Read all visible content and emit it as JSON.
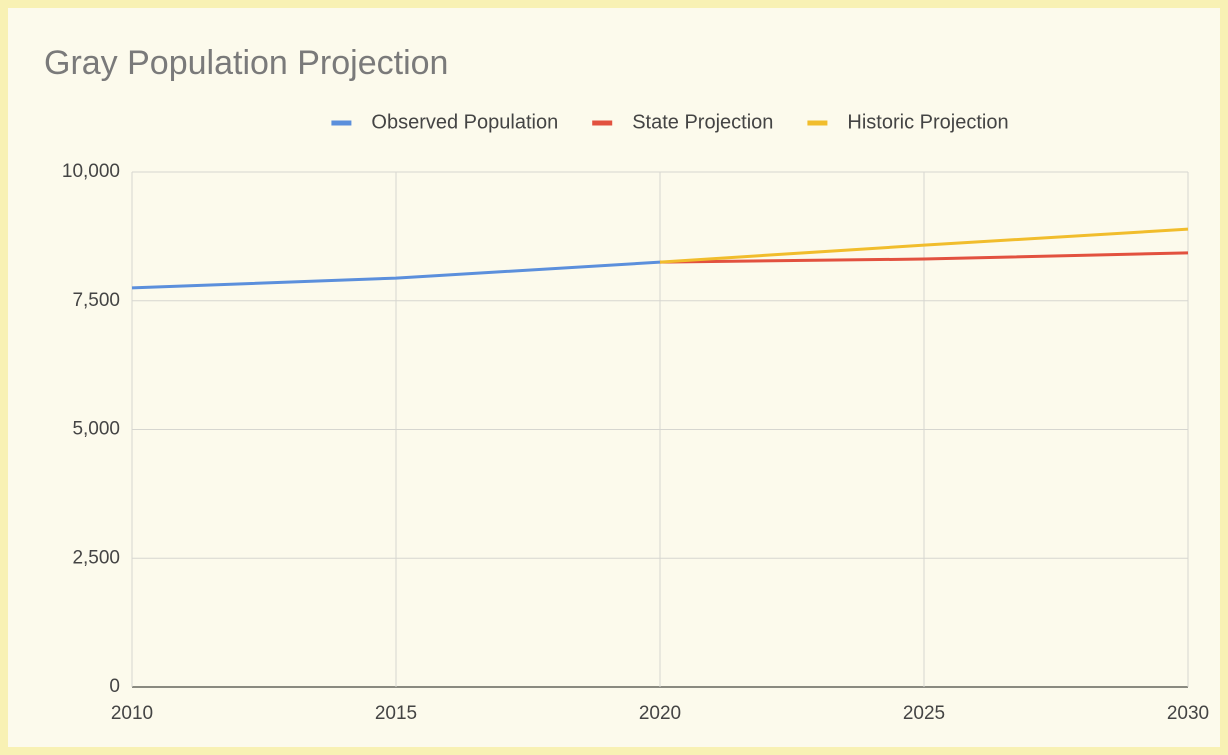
{
  "chart_data": {
    "type": "line",
    "title": "Gray Population Projection",
    "x": [
      2010,
      2015,
      2020,
      2025,
      2030
    ],
    "series": [
      {
        "name": "Observed Population",
        "color": "#5b8fdc",
        "values": [
          7750,
          7940,
          8250,
          null,
          null
        ]
      },
      {
        "name": "State Projection",
        "color": "#e2513f",
        "values": [
          null,
          null,
          8250,
          8310,
          8430
        ]
      },
      {
        "name": "Historic Projection",
        "color": "#f1bd2c",
        "values": [
          null,
          null,
          8250,
          8580,
          8890
        ]
      }
    ],
    "xlim": [
      2010,
      2030
    ],
    "xticks": [
      2010,
      2015,
      2020,
      2025,
      2030
    ],
    "ylim": [
      0,
      10000
    ],
    "yticks": [
      0,
      {
        "value": 2500,
        "label": "2,500"
      },
      {
        "value": 5000,
        "label": "5,000"
      },
      {
        "value": 7500,
        "label": "7,500"
      },
      {
        "value": 10000,
        "label": "10,000"
      }
    ],
    "grid": true,
    "legend": "top"
  }
}
